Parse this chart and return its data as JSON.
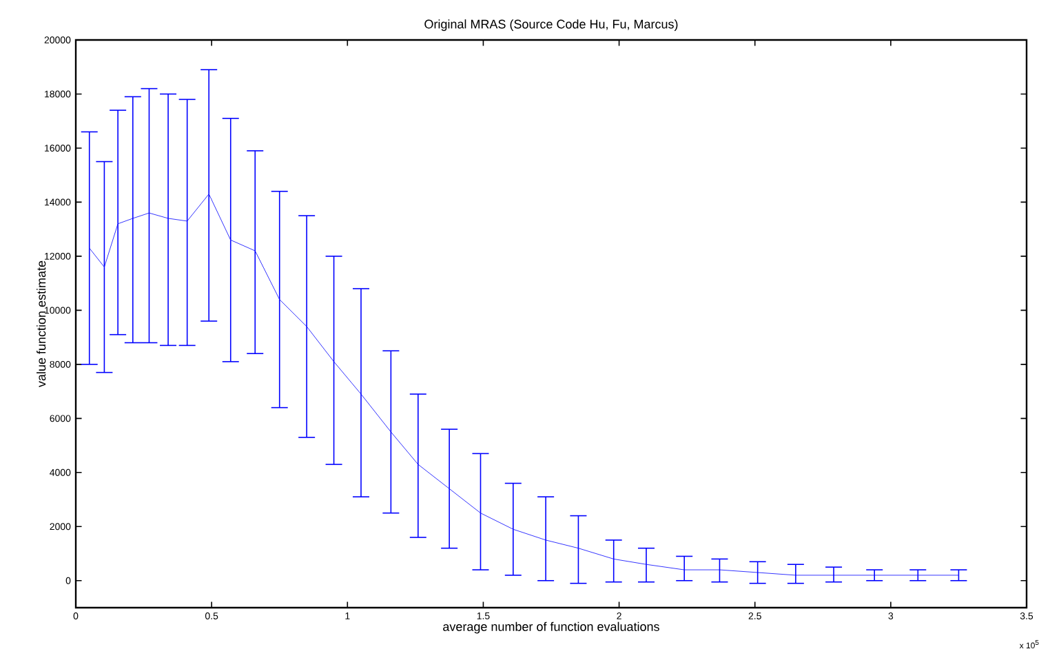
{
  "chart_data": {
    "type": "line",
    "title": "Original MRAS (Source Code Hu, Fu, Marcus)",
    "xlabel": "average number of function evaluations",
    "ylabel": "value function estimate",
    "annotations": [
      "x 10$^{5}$"
    ],
    "x": [
      0.05,
      0.105,
      0.155,
      0.21,
      0.27,
      0.34,
      0.41,
      0.49,
      0.57,
      0.66,
      0.75,
      0.85,
      0.95,
      1.05,
      1.16,
      1.26,
      1.375,
      1.49,
      1.61,
      1.73,
      1.85,
      1.98,
      2.1,
      2.24,
      2.37,
      2.51,
      2.65,
      2.79,
      2.94,
      3.1,
      3.25
    ],
    "series": [
      {
        "color": "#0000ff",
        "values": [
          12300,
          11600,
          13200,
          13400,
          13600,
          13400,
          13300,
          14300,
          12600,
          12200,
          10400,
          9400,
          8100,
          6900,
          5500,
          4300,
          3400,
          2500,
          1900,
          1500,
          1200,
          800,
          600,
          400,
          400,
          300,
          200,
          200,
          200,
          200,
          200
        ],
        "errors": [
          [
            8000,
            16600
          ],
          [
            7700,
            15500
          ],
          [
            9100,
            17400
          ],
          [
            8800,
            17900
          ],
          [
            8800,
            18200
          ],
          [
            8700,
            18000
          ],
          [
            8700,
            17800
          ],
          [
            9600,
            18900
          ],
          [
            8100,
            17100
          ],
          [
            8400,
            15900
          ],
          [
            6400,
            14400
          ],
          [
            5300,
            13500
          ],
          [
            4300,
            12000
          ],
          [
            3100,
            10800
          ],
          [
            2500,
            8500
          ],
          [
            1600,
            6900
          ],
          [
            1200,
            5600
          ],
          [
            400,
            4700
          ],
          [
            200,
            3600
          ],
          [
            0,
            3100
          ],
          [
            -100,
            2400
          ],
          [
            -50,
            1500
          ],
          [
            -50,
            1200
          ],
          [
            0,
            900
          ],
          [
            -50,
            800
          ],
          [
            -100,
            700
          ],
          [
            -100,
            600
          ],
          [
            -50,
            500
          ],
          [
            0,
            400
          ],
          [
            0,
            400
          ],
          [
            0,
            400
          ]
        ]
      }
    ],
    "xlim": [
      0,
      3.5
    ],
    "xticks": [
      0,
      0.5,
      1,
      1.5,
      2,
      2.5,
      3,
      3.5
    ],
    "ylim": [
      -1000,
      20000
    ],
    "yticks": [
      0,
      2000,
      4000,
      6000,
      8000,
      10000,
      12000,
      14000,
      16000,
      18000,
      20000
    ],
    "grid": false,
    "marker": "none",
    "line_style": "solid"
  }
}
